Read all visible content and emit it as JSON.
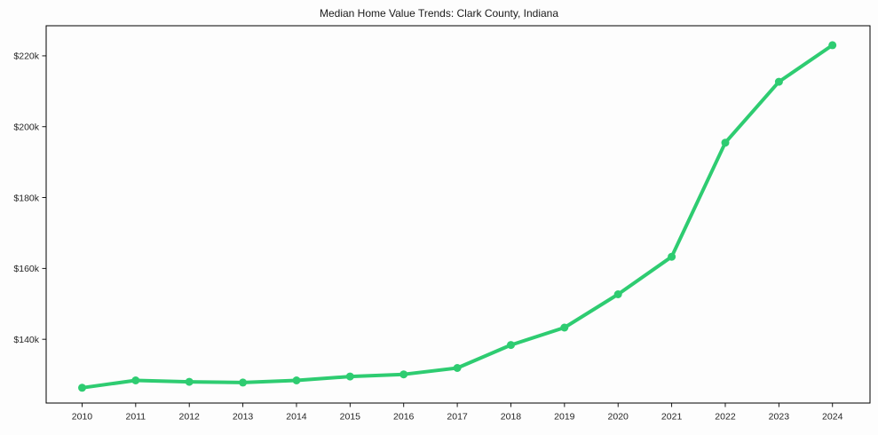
{
  "page": {
    "background": "#fdfdfd"
  },
  "chart_data": {
    "type": "line",
    "title": "Median Home Value Trends: Clark County, Indiana",
    "xlabel": "",
    "ylabel": "",
    "grid": false,
    "legend": "none",
    "axis_color": "#000000",
    "text_color": "#262626",
    "x": [
      2010,
      2011,
      2012,
      2013,
      2014,
      2015,
      2016,
      2017,
      2018,
      2019,
      2020,
      2021,
      2022,
      2023,
      2024
    ],
    "xtick_labels": [
      "2010",
      "2011",
      "2012",
      "2013",
      "2014",
      "2015",
      "2016",
      "2017",
      "2018",
      "2019",
      "2020",
      "2021",
      "2022",
      "2023",
      "2024"
    ],
    "ytick_values": [
      140000,
      160000,
      180000,
      200000,
      220000
    ],
    "ytick_labels": [
      "$140k",
      "$160k",
      "$180k",
      "$200k",
      "$220k"
    ],
    "xlim": [
      2009.33,
      2024.7
    ],
    "ylim": [
      122000,
      228500
    ],
    "series": [
      {
        "name": "Median Home Value",
        "color": "#2ecc71",
        "marker": "circle",
        "values": [
          126300,
          128400,
          128000,
          127800,
          128400,
          129500,
          130100,
          131900,
          138400,
          143300,
          152700,
          163300,
          195500,
          212700,
          223000
        ]
      }
    ]
  }
}
